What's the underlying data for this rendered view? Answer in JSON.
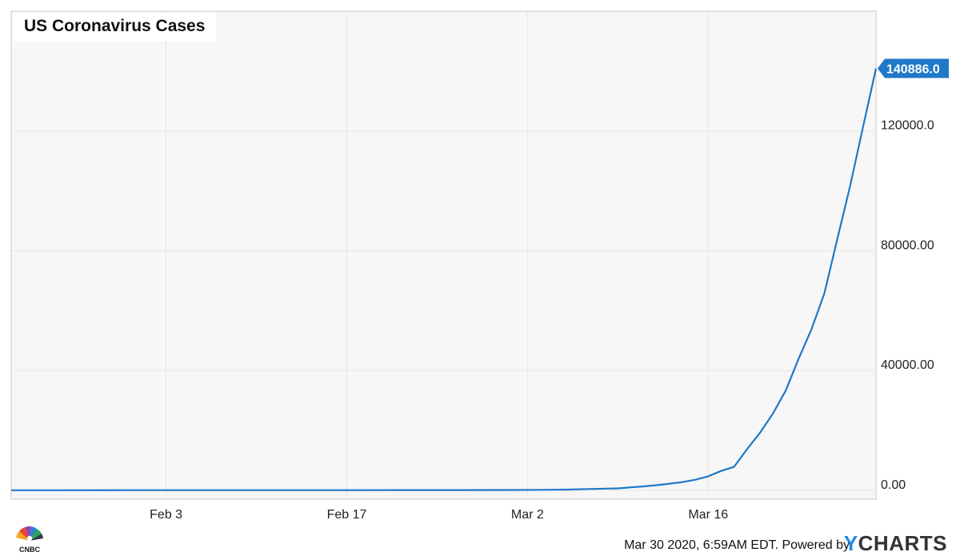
{
  "chart_data": {
    "type": "line",
    "title": "US Coronavirus Cases",
    "xlabel": "",
    "ylabel": "",
    "x_start": "2020-01-22",
    "x_end": "2020-03-29",
    "x_ticks": [
      {
        "label": "Feb 3",
        "date": "2020-02-03"
      },
      {
        "label": "Feb 17",
        "date": "2020-02-17"
      },
      {
        "label": "Mar 2",
        "date": "2020-03-02"
      },
      {
        "label": "Mar 16",
        "date": "2020-03-16"
      }
    ],
    "y_ticks": [
      {
        "label": "0.00",
        "value": 0
      },
      {
        "label": "40000.00",
        "value": 40000
      },
      {
        "label": "80000.00",
        "value": 80000
      },
      {
        "label": "120000.0",
        "value": 120000
      }
    ],
    "ylim": [
      -3000,
      160000
    ],
    "grid": true,
    "series": [
      {
        "color": "#1f78c8",
        "last_value_label": "140886.0",
        "points": [
          [
            "2020-01-22",
            1
          ],
          [
            "2020-01-26",
            5
          ],
          [
            "2020-02-01",
            8
          ],
          [
            "2020-02-08",
            12
          ],
          [
            "2020-02-15",
            15
          ],
          [
            "2020-02-22",
            35
          ],
          [
            "2020-02-26",
            59
          ],
          [
            "2020-03-01",
            75
          ],
          [
            "2020-03-03",
            118
          ],
          [
            "2020-03-05",
            217
          ],
          [
            "2020-03-07",
            417
          ],
          [
            "2020-03-08",
            537
          ],
          [
            "2020-03-09",
            605
          ],
          [
            "2020-03-10",
            959
          ],
          [
            "2020-03-11",
            1281
          ],
          [
            "2020-03-12",
            1663
          ],
          [
            "2020-03-13",
            2179
          ],
          [
            "2020-03-14",
            2727
          ],
          [
            "2020-03-15",
            3499
          ],
          [
            "2020-03-16",
            4632
          ],
          [
            "2020-03-17",
            6421
          ],
          [
            "2020-03-18",
            7786
          ],
          [
            "2020-03-19",
            13680
          ],
          [
            "2020-03-20",
            19101
          ],
          [
            "2020-03-21",
            25493
          ],
          [
            "2020-03-22",
            33272
          ],
          [
            "2020-03-23",
            43847
          ],
          [
            "2020-03-24",
            53740
          ],
          [
            "2020-03-25",
            65778
          ],
          [
            "2020-03-26",
            83836
          ],
          [
            "2020-03-27",
            101657
          ],
          [
            "2020-03-28",
            121478
          ],
          [
            "2020-03-29",
            140886
          ]
        ]
      }
    ]
  },
  "footer": {
    "timestamp": "Mar 30 2020, 6:59AM EDT. Powered by",
    "brand_y": "Y",
    "brand_rest": "CHARTS",
    "source_logo": "CNBC"
  },
  "colors": {
    "plot_background": "#f7f7f7",
    "grid": "#e6e6e6",
    "line": "#1f78c8",
    "label_badge": "#1f78c8"
  }
}
